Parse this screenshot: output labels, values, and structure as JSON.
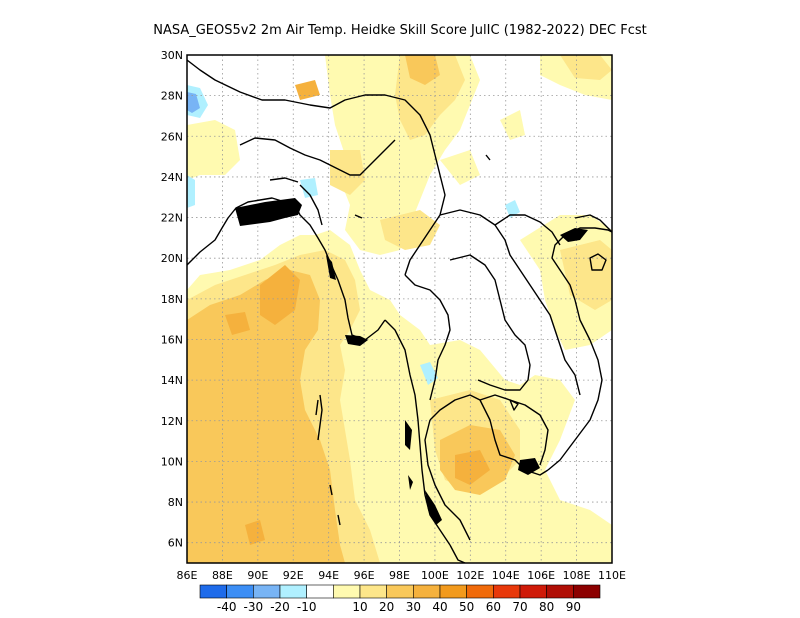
{
  "title": "NASA_GEOS5v2  2m Air Temp. Heidke Skill Score JulIC (1982-2022) DEC Fcst",
  "map": {
    "lon_range": [
      86,
      110
    ],
    "lat_range": [
      5,
      30
    ],
    "lat_ticks": [
      "6N",
      "8N",
      "10N",
      "12N",
      "14N",
      "16N",
      "18N",
      "20N",
      "22N",
      "24N",
      "26N",
      "28N",
      "30N"
    ],
    "lon_ticks": [
      "86E",
      "88E",
      "90E",
      "92E",
      "94E",
      "96E",
      "98E",
      "100E",
      "102E",
      "104E",
      "106E",
      "108E",
      "110E"
    ],
    "grid": "dotted",
    "colors": {
      "neg10": "#b0f0ff",
      "pos10": "#fffab0",
      "pos20": "#fde68a",
      "pos30": "#f9c85a",
      "pos40": "#f5b13d",
      "pos50": "#f29a1d",
      "coast": "#000000"
    }
  },
  "colorbar": {
    "colors": [
      "#1e6bea",
      "#3c8ef5",
      "#78b4f5",
      "#b0f0ff",
      "#ffffff",
      "#fffab0",
      "#fde68a",
      "#f9c85a",
      "#f5b13d",
      "#f29a1d",
      "#f06a0a",
      "#e8380a",
      "#cf1a08",
      "#b00e05",
      "#8c0000"
    ],
    "labels": [
      "-40",
      "-30",
      "-20",
      "-10",
      "10",
      "20",
      "30",
      "40",
      "50",
      "60",
      "70",
      "80",
      "90"
    ]
  }
}
